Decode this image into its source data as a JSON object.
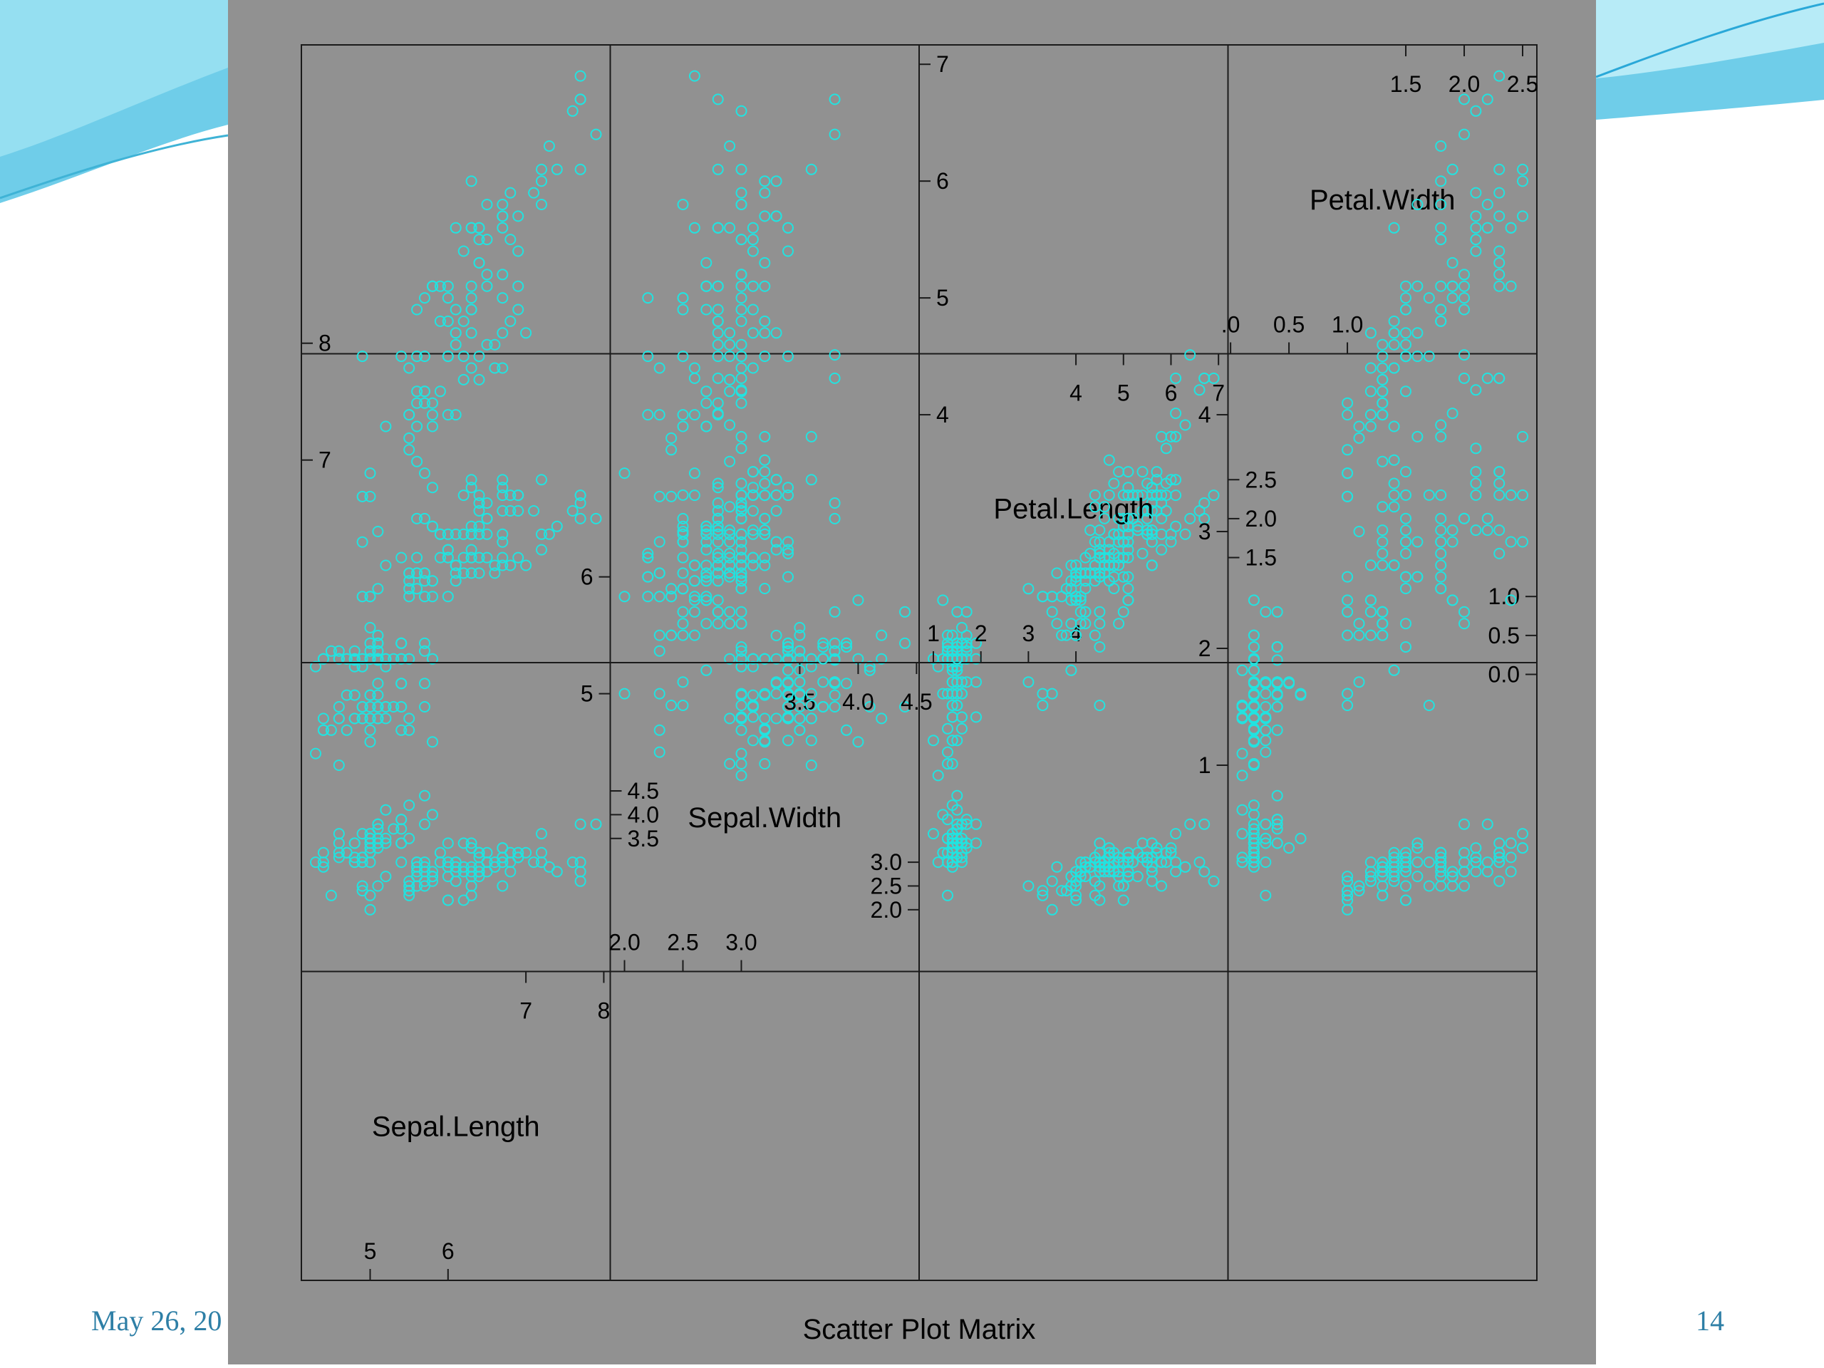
{
  "slide": {
    "date_text": "May 26, 20",
    "page_number": "14"
  },
  "colors": {
    "panel_background": "#919191",
    "point_color": "#22e3e0",
    "frame_color": "#1a1a1a",
    "text_color": "#000000",
    "footer_text": "#2e7fa6",
    "wave_light": "#bfeef8",
    "wave_mid": "#6fcde9",
    "wave_dark": "#2aa8d8"
  },
  "chart_data": {
    "type": "scatter",
    "title": "Scatter Plot Matrix",
    "variables": [
      {
        "name": "Sepal.Length",
        "range": [
          4.3,
          7.9
        ],
        "ticks_low": [
          "5",
          "6"
        ],
        "ticks_high": [
          "7",
          "8"
        ]
      },
      {
        "name": "Sepal.Width",
        "range": [
          2.0,
          4.4
        ],
        "ticks_low": [
          "2.0",
          "2.5",
          "3.0"
        ],
        "ticks_high": [
          "3.0",
          "3.5",
          "4.0",
          "4.5"
        ]
      },
      {
        "name": "Petal.Length",
        "range": [
          1.0,
          6.9
        ],
        "ticks_low": [
          "1",
          "2",
          "3",
          "4"
        ],
        "ticks_high": [
          "4",
          "5",
          "6",
          "7"
        ]
      },
      {
        "name": "Petal.Width",
        "range": [
          0.1,
          2.5
        ],
        "ticks_low": [
          ".0",
          "0.5",
          "1.0"
        ],
        "ticks_high": [
          "1.0",
          "1.5",
          "2.0",
          "2.5"
        ]
      }
    ],
    "diagonal_ticks": [
      {
        "left": [
          {
            "v": 5,
            "t": "5"
          },
          {
            "v": 6,
            "t": "6"
          }
        ],
        "top": [
          {
            "v": 7,
            "t": "7"
          },
          {
            "v": 8,
            "t": "8"
          }
        ],
        "right": [
          {
            "v": 5,
            "t": "5"
          },
          {
            "v": 6,
            "t": "6"
          }
        ],
        "topleft": [
          {
            "v": 7,
            "t": "7"
          },
          {
            "v": 8,
            "t": "8"
          }
        ]
      },
      {
        "left": [
          {
            "v": 2.0,
            "t": "2.0"
          },
          {
            "v": 2.5,
            "t": "2.5"
          },
          {
            "v": 3.0,
            "t": "3.0"
          }
        ],
        "top": [
          {
            "v": 3.5,
            "t": "3.5"
          },
          {
            "v": 4.0,
            "t": "4.0"
          },
          {
            "v": 4.5,
            "t": "4.5"
          }
        ],
        "right": [
          {
            "v": 2.0,
            "t": "2.0"
          },
          {
            "v": 2.5,
            "t": "2.5"
          },
          {
            "v": 3.0,
            "t": "3.0"
          }
        ],
        "topleft": [
          {
            "v": 3.5,
            "t": "3.5"
          },
          {
            "v": 4.0,
            "t": "4.0"
          },
          {
            "v": 4.5,
            "t": "4.5"
          }
        ]
      },
      {
        "left": [
          {
            "v": 1,
            "t": "1"
          },
          {
            "v": 2,
            "t": "2"
          },
          {
            "v": 3,
            "t": "3"
          },
          {
            "v": 4,
            "t": "4"
          }
        ],
        "top": [
          {
            "v": 4,
            "t": "4"
          },
          {
            "v": 5,
            "t": "5"
          },
          {
            "v": 6,
            "t": "6"
          },
          {
            "v": 7,
            "t": "7"
          }
        ],
        "right": [
          {
            "v": 1,
            "t": "1"
          },
          {
            "v": 2,
            "t": "2"
          },
          {
            "v": 3,
            "t": "3"
          },
          {
            "v": 4,
            "t": "4"
          }
        ],
        "topleft": [
          {
            "v": 4,
            "t": "4"
          },
          {
            "v": 5,
            "t": "5"
          },
          {
            "v": 6,
            "t": "6"
          },
          {
            "v": 7,
            "t": "7"
          }
        ]
      },
      {
        "left": [
          {
            "v": 0.0,
            "t": ".0"
          },
          {
            "v": 0.5,
            "t": "0.5"
          },
          {
            "v": 1.0,
            "t": "1.0"
          }
        ],
        "top": [
          {
            "v": 1.5,
            "t": "1.5"
          },
          {
            "v": 2.0,
            "t": "2.0"
          },
          {
            "v": 2.5,
            "t": "2.5"
          }
        ],
        "right": [
          {
            "v": 0.0,
            "t": "0.0"
          },
          {
            "v": 0.5,
            "t": "0.5"
          },
          {
            "v": 1.0,
            "t": "1.0"
          }
        ],
        "topleft": [
          {
            "v": 1.5,
            "t": "1.5"
          },
          {
            "v": 2.0,
            "t": "2.0"
          },
          {
            "v": 2.5,
            "t": "2.5"
          }
        ]
      }
    ],
    "observations": [
      [
        5.1,
        3.5,
        1.4,
        0.2
      ],
      [
        4.9,
        3.0,
        1.4,
        0.2
      ],
      [
        4.7,
        3.2,
        1.3,
        0.2
      ],
      [
        4.6,
        3.1,
        1.5,
        0.2
      ],
      [
        5.0,
        3.6,
        1.4,
        0.2
      ],
      [
        5.4,
        3.9,
        1.7,
        0.4
      ],
      [
        4.6,
        3.4,
        1.4,
        0.3
      ],
      [
        5.0,
        3.4,
        1.5,
        0.2
      ],
      [
        4.4,
        2.9,
        1.4,
        0.2
      ],
      [
        4.9,
        3.1,
        1.5,
        0.1
      ],
      [
        5.4,
        3.7,
        1.5,
        0.2
      ],
      [
        4.8,
        3.4,
        1.6,
        0.2
      ],
      [
        4.8,
        3.0,
        1.4,
        0.1
      ],
      [
        4.3,
        3.0,
        1.1,
        0.1
      ],
      [
        5.8,
        4.0,
        1.2,
        0.2
      ],
      [
        5.7,
        4.4,
        1.5,
        0.4
      ],
      [
        5.4,
        3.9,
        1.3,
        0.4
      ],
      [
        5.1,
        3.5,
        1.4,
        0.3
      ],
      [
        5.7,
        3.8,
        1.7,
        0.3
      ],
      [
        5.1,
        3.8,
        1.5,
        0.3
      ],
      [
        5.4,
        3.4,
        1.7,
        0.2
      ],
      [
        5.1,
        3.7,
        1.5,
        0.4
      ],
      [
        4.6,
        3.6,
        1.0,
        0.2
      ],
      [
        5.1,
        3.3,
        1.7,
        0.5
      ],
      [
        4.8,
        3.4,
        1.9,
        0.2
      ],
      [
        5.0,
        3.0,
        1.6,
        0.2
      ],
      [
        5.0,
        3.4,
        1.6,
        0.4
      ],
      [
        5.2,
        3.5,
        1.5,
        0.2
      ],
      [
        5.2,
        3.4,
        1.4,
        0.2
      ],
      [
        4.7,
        3.2,
        1.6,
        0.2
      ],
      [
        4.8,
        3.1,
        1.6,
        0.2
      ],
      [
        5.4,
        3.4,
        1.5,
        0.4
      ],
      [
        5.2,
        4.1,
        1.5,
        0.1
      ],
      [
        5.5,
        4.2,
        1.4,
        0.2
      ],
      [
        4.9,
        3.1,
        1.5,
        0.2
      ],
      [
        5.0,
        3.2,
        1.2,
        0.2
      ],
      [
        5.5,
        3.5,
        1.3,
        0.2
      ],
      [
        4.9,
        3.6,
        1.4,
        0.1
      ],
      [
        4.4,
        3.0,
        1.3,
        0.2
      ],
      [
        5.1,
        3.4,
        1.5,
        0.2
      ],
      [
        5.0,
        3.5,
        1.3,
        0.3
      ],
      [
        4.5,
        2.3,
        1.3,
        0.3
      ],
      [
        4.4,
        3.2,
        1.3,
        0.2
      ],
      [
        5.0,
        3.5,
        1.6,
        0.6
      ],
      [
        5.1,
        3.8,
        1.9,
        0.4
      ],
      [
        4.8,
        3.0,
        1.4,
        0.3
      ],
      [
        5.1,
        3.8,
        1.6,
        0.2
      ],
      [
        4.6,
        3.2,
        1.4,
        0.2
      ],
      [
        5.3,
        3.7,
        1.5,
        0.2
      ],
      [
        5.0,
        3.3,
        1.4,
        0.2
      ],
      [
        7.0,
        3.2,
        4.7,
        1.4
      ],
      [
        6.4,
        3.2,
        4.5,
        1.5
      ],
      [
        6.9,
        3.1,
        4.9,
        1.5
      ],
      [
        5.5,
        2.3,
        4.0,
        1.3
      ],
      [
        6.5,
        2.8,
        4.6,
        1.5
      ],
      [
        5.7,
        2.8,
        4.5,
        1.3
      ],
      [
        6.3,
        3.3,
        4.7,
        1.6
      ],
      [
        4.9,
        2.4,
        3.3,
        1.0
      ],
      [
        6.6,
        2.9,
        4.6,
        1.3
      ],
      [
        5.2,
        2.7,
        3.9,
        1.4
      ],
      [
        5.0,
        2.0,
        3.5,
        1.0
      ],
      [
        5.9,
        3.0,
        4.2,
        1.5
      ],
      [
        6.0,
        2.2,
        4.0,
        1.0
      ],
      [
        6.1,
        2.9,
        4.7,
        1.4
      ],
      [
        5.6,
        2.9,
        3.6,
        1.3
      ],
      [
        6.7,
        3.1,
        4.4,
        1.4
      ],
      [
        5.6,
        3.0,
        4.5,
        1.5
      ],
      [
        5.8,
        2.7,
        4.1,
        1.0
      ],
      [
        6.2,
        2.2,
        4.5,
        1.5
      ],
      [
        5.6,
        2.5,
        3.9,
        1.1
      ],
      [
        5.9,
        3.2,
        4.8,
        1.8
      ],
      [
        6.1,
        2.8,
        4.0,
        1.3
      ],
      [
        6.3,
        2.5,
        4.9,
        1.5
      ],
      [
        6.1,
        2.8,
        4.7,
        1.2
      ],
      [
        6.4,
        2.9,
        4.3,
        1.3
      ],
      [
        6.6,
        3.0,
        4.4,
        1.4
      ],
      [
        6.8,
        2.8,
        4.8,
        1.4
      ],
      [
        6.7,
        3.0,
        5.0,
        1.7
      ],
      [
        6.0,
        2.9,
        4.5,
        1.5
      ],
      [
        5.7,
        2.6,
        3.5,
        1.0
      ],
      [
        5.5,
        2.4,
        3.8,
        1.1
      ],
      [
        5.5,
        2.4,
        3.7,
        1.0
      ],
      [
        5.8,
        2.7,
        3.9,
        1.2
      ],
      [
        6.0,
        2.7,
        5.1,
        1.6
      ],
      [
        5.4,
        3.0,
        4.5,
        1.5
      ],
      [
        6.0,
        3.4,
        4.5,
        1.6
      ],
      [
        6.7,
        3.1,
        4.7,
        1.5
      ],
      [
        6.3,
        2.3,
        4.4,
        1.3
      ],
      [
        5.6,
        3.0,
        4.1,
        1.3
      ],
      [
        5.5,
        2.5,
        4.0,
        1.3
      ],
      [
        5.5,
        2.6,
        4.4,
        1.2
      ],
      [
        6.1,
        3.0,
        4.6,
        1.4
      ],
      [
        5.8,
        2.6,
        4.0,
        1.2
      ],
      [
        5.0,
        2.3,
        3.3,
        1.0
      ],
      [
        5.6,
        2.7,
        4.2,
        1.3
      ],
      [
        5.7,
        3.0,
        4.2,
        1.2
      ],
      [
        5.7,
        2.9,
        4.2,
        1.3
      ],
      [
        6.2,
        2.9,
        4.3,
        1.3
      ],
      [
        5.1,
        2.5,
        3.0,
        1.1
      ],
      [
        5.7,
        2.8,
        4.1,
        1.3
      ],
      [
        6.3,
        3.3,
        6.0,
        2.5
      ],
      [
        5.8,
        2.7,
        5.1,
        1.9
      ],
      [
        7.1,
        3.0,
        5.9,
        2.1
      ],
      [
        6.3,
        2.9,
        5.6,
        1.8
      ],
      [
        6.5,
        3.0,
        5.8,
        2.2
      ],
      [
        7.6,
        3.0,
        6.6,
        2.1
      ],
      [
        4.9,
        2.5,
        4.5,
        1.7
      ],
      [
        7.3,
        2.9,
        6.3,
        1.8
      ],
      [
        6.7,
        2.5,
        5.8,
        1.8
      ],
      [
        7.2,
        3.6,
        6.1,
        2.5
      ],
      [
        6.5,
        3.2,
        5.1,
        2.0
      ],
      [
        6.4,
        2.7,
        5.3,
        1.9
      ],
      [
        6.8,
        3.0,
        5.5,
        2.1
      ],
      [
        5.7,
        2.5,
        5.0,
        2.0
      ],
      [
        5.8,
        2.8,
        5.1,
        2.4
      ],
      [
        6.4,
        3.2,
        5.3,
        2.3
      ],
      [
        6.5,
        3.0,
        5.5,
        1.8
      ],
      [
        7.7,
        3.8,
        6.7,
        2.2
      ],
      [
        7.7,
        2.6,
        6.9,
        2.3
      ],
      [
        6.0,
        2.2,
        5.0,
        1.5
      ],
      [
        6.9,
        3.2,
        5.7,
        2.3
      ],
      [
        5.6,
        2.8,
        4.9,
        2.0
      ],
      [
        7.7,
        2.8,
        6.7,
        2.0
      ],
      [
        6.3,
        2.7,
        4.9,
        1.8
      ],
      [
        6.7,
        3.3,
        5.7,
        2.1
      ],
      [
        7.2,
        3.2,
        6.0,
        1.8
      ],
      [
        6.2,
        2.8,
        4.8,
        1.8
      ],
      [
        6.1,
        3.0,
        4.9,
        1.8
      ],
      [
        6.4,
        2.8,
        5.6,
        2.1
      ],
      [
        7.2,
        3.0,
        5.8,
        1.6
      ],
      [
        7.4,
        2.8,
        6.1,
        1.9
      ],
      [
        7.9,
        3.8,
        6.4,
        2.0
      ],
      [
        6.4,
        2.8,
        5.6,
        2.2
      ],
      [
        6.3,
        2.8,
        5.1,
        1.5
      ],
      [
        6.1,
        2.6,
        5.6,
        1.4
      ],
      [
        7.7,
        3.0,
        6.1,
        2.3
      ],
      [
        6.3,
        3.4,
        5.6,
        2.4
      ],
      [
        6.4,
        3.1,
        5.5,
        1.8
      ],
      [
        6.0,
        3.0,
        4.8,
        1.8
      ],
      [
        6.9,
        3.1,
        5.4,
        2.1
      ],
      [
        6.7,
        3.1,
        5.6,
        2.4
      ],
      [
        6.9,
        3.1,
        5.1,
        2.3
      ],
      [
        5.8,
        2.7,
        5.1,
        1.9
      ],
      [
        6.8,
        3.2,
        5.9,
        2.3
      ],
      [
        6.7,
        3.3,
        5.7,
        2.5
      ],
      [
        6.7,
        3.0,
        5.2,
        2.3
      ],
      [
        6.3,
        2.5,
        5.0,
        1.9
      ],
      [
        6.5,
        3.0,
        5.2,
        2.0
      ],
      [
        6.2,
        3.4,
        5.4,
        2.3
      ],
      [
        5.9,
        3.0,
        5.1,
        1.8
      ]
    ]
  }
}
